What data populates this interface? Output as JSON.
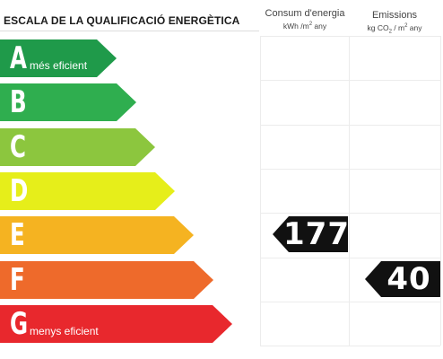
{
  "header": {
    "title": "ESCALA DE LA QUALIFICACIÓ ENERGÈTICA",
    "consum": {
      "label": "Consum d'energia",
      "unit_main": "kWh /m",
      "unit_sup": "2",
      "unit_tail": " any"
    },
    "emissions": {
      "label": "Emissions",
      "unit_main": "kg CO",
      "unit_sub": "2",
      "unit_mid": " / m",
      "unit_sup": "2",
      "unit_tail": " any"
    }
  },
  "ratings": [
    {
      "letter": "A",
      "caption": "més eficient",
      "color": "#1f9a4a"
    },
    {
      "letter": "B",
      "caption": "",
      "color": "#2fae4f"
    },
    {
      "letter": "C",
      "caption": "",
      "color": "#8cc63e"
    },
    {
      "letter": "D",
      "caption": "",
      "color": "#e6ee1a"
    },
    {
      "letter": "E",
      "caption": "",
      "color": "#f5b321"
    },
    {
      "letter": "F",
      "caption": "",
      "color": "#ee6a2b"
    },
    {
      "letter": "G",
      "caption": "menys eficient",
      "color": "#e8282d"
    }
  ],
  "values": {
    "consum": {
      "value": "177",
      "rating": "E"
    },
    "emissions": {
      "value": "40",
      "rating": "F"
    }
  },
  "colors": {
    "tag_background": "#111111",
    "grid_line": "#ececec"
  }
}
